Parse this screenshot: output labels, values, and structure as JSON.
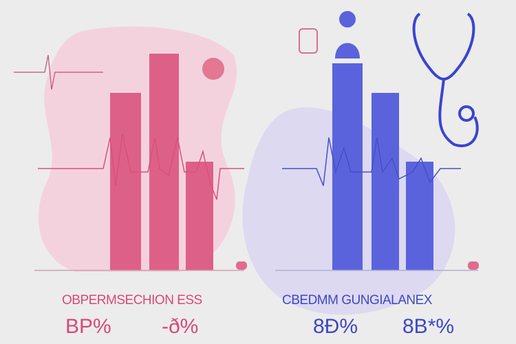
{
  "colors": {
    "pink": "#dc5d86",
    "blue": "#5561dd",
    "pink_blob": "#f2cfdc",
    "blue_blob": "#dcd8f0",
    "bg": "#ececec"
  },
  "left": {
    "title": "OBPERMSECHION ESS",
    "value1": "BP%",
    "value2": "-ð%"
  },
  "right": {
    "title": "CBEDMM GUNGIALANEX",
    "value1": "8Ð%",
    "value2": "8B*%"
  },
  "icons": [
    "heart-rate-line",
    "person-icon",
    "stethoscope-icon",
    "iv-bag-icon",
    "capsule-icon"
  ]
}
